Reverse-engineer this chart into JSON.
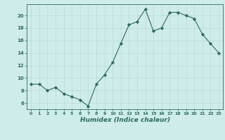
{
  "x": [
    0,
    1,
    2,
    3,
    4,
    5,
    6,
    7,
    8,
    9,
    10,
    11,
    12,
    13,
    14,
    15,
    16,
    17,
    18,
    19,
    20,
    21,
    22,
    23
  ],
  "y": [
    9,
    9,
    8,
    8.5,
    7.5,
    7,
    6.5,
    5.5,
    9,
    10.5,
    12.5,
    15.5,
    18.5,
    19,
    21,
    17.5,
    18,
    20.5,
    20.5,
    20,
    19.5,
    17,
    15.5,
    14
  ],
  "line_color": "#2e6b5e",
  "marker": "D",
  "marker_size": 2.2,
  "xlabel": "Humidex (Indice chaleur)",
  "ylim": [
    5,
    21.8
  ],
  "xlim": [
    -0.5,
    23.5
  ],
  "yticks": [
    6,
    8,
    10,
    12,
    14,
    16,
    18,
    20
  ],
  "xticks": [
    0,
    1,
    2,
    3,
    4,
    5,
    6,
    7,
    8,
    9,
    10,
    11,
    12,
    13,
    14,
    15,
    16,
    17,
    18,
    19,
    20,
    21,
    22,
    23
  ],
  "bg_color": "#ceecea",
  "grid_color": "#b8dbd8",
  "axis_color": "#2e6b5e"
}
